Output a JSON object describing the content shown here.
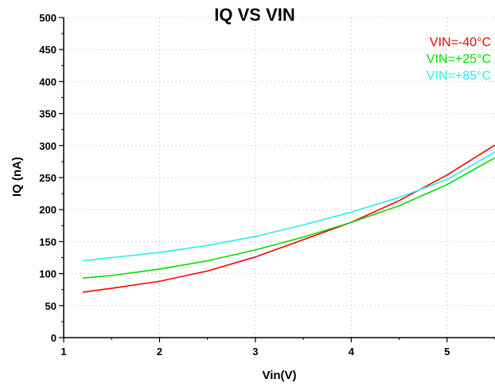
{
  "chart_data": {
    "type": "line",
    "title": "IQ VS VIN",
    "xlabel": "Vin(V)",
    "ylabel": "IQ (nA)",
    "xlim": [
      1,
      5.5
    ],
    "ylim": [
      0,
      500
    ],
    "x_ticks": [
      1,
      2,
      3,
      4,
      5
    ],
    "y_ticks": [
      0,
      50,
      100,
      150,
      200,
      250,
      300,
      350,
      400,
      450,
      500
    ],
    "x_tick_labels": [
      "1",
      "2",
      "3",
      "4",
      "5"
    ],
    "y_tick_labels": [
      "0",
      "50",
      "100",
      "150",
      "200",
      "250",
      "300",
      "350",
      "400",
      "450",
      "500"
    ],
    "grid": true,
    "legend_position": "top-right",
    "series": [
      {
        "name": "VIN=-40°C",
        "color": "#ff0000",
        "x": [
          1.2,
          1.5,
          2.0,
          2.5,
          3.0,
          3.5,
          4.0,
          4.5,
          5.0,
          5.5
        ],
        "y": [
          71,
          77,
          88,
          104,
          126,
          153,
          180,
          214,
          254,
          301
        ]
      },
      {
        "name": "VIN=+25°C",
        "color": "#00dd00",
        "x": [
          1.2,
          1.5,
          2.0,
          2.5,
          3.0,
          3.5,
          4.0,
          4.5,
          5.0,
          5.5
        ],
        "y": [
          93,
          97,
          107,
          120,
          137,
          157,
          180,
          206,
          239,
          281
        ]
      },
      {
        "name": "VIN=+85°C",
        "color": "#22eeee",
        "x": [
          1.2,
          1.5,
          2.0,
          2.5,
          3.0,
          3.5,
          4.0,
          4.5,
          5.0,
          5.5
        ],
        "y": [
          120,
          125,
          133,
          144,
          158,
          176,
          196,
          219,
          247,
          290
        ]
      }
    ]
  }
}
